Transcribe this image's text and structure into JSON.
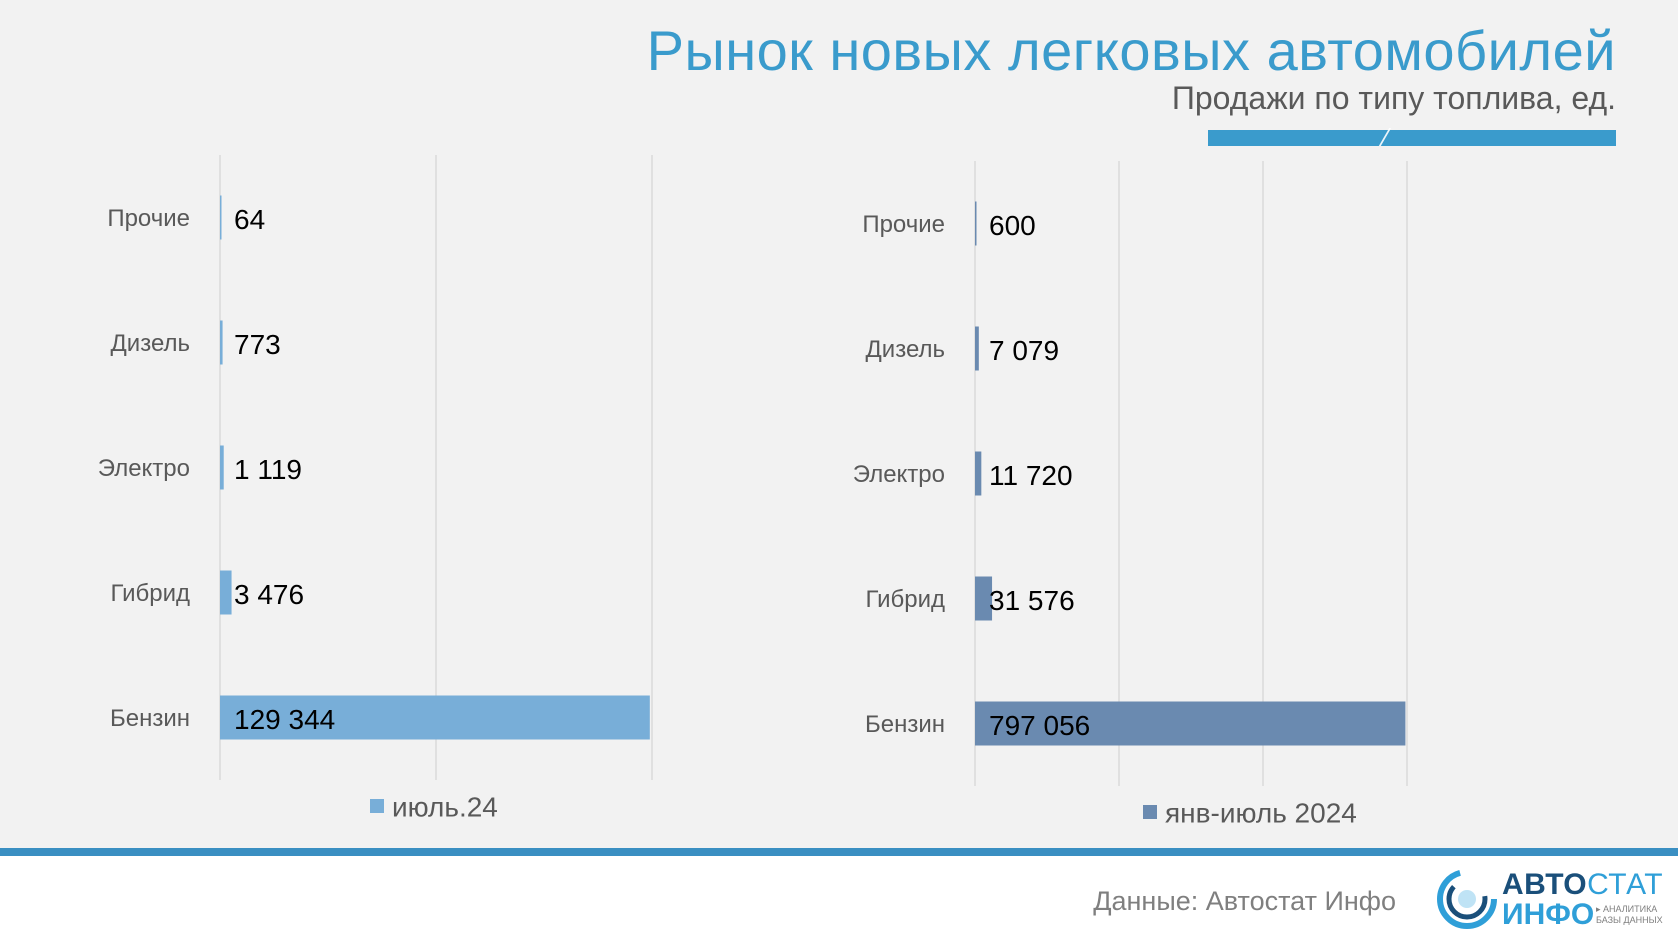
{
  "header": {
    "title": "Рынок новых легковых автомобилей",
    "subtitle": "Продажи по типу топлива, ед."
  },
  "colors": {
    "accent": "#3a9bcc",
    "bar_july": "#78aed8",
    "bar_ytd": "#6a8ab0"
  },
  "chart_data": [
    {
      "type": "bar",
      "orientation": "horizontal",
      "categories": [
        "Прочие",
        "Дизель",
        "Электро",
        "Гибрид",
        "Бензин"
      ],
      "values": [
        64,
        773,
        1119,
        3476,
        129344
      ],
      "value_labels": [
        "64",
        "773",
        "1 119",
        "3 476",
        "129 344"
      ],
      "series_name": "июль.24",
      "xlim": [
        0,
        130000
      ],
      "grid": true,
      "legend": "bottom"
    },
    {
      "type": "bar",
      "orientation": "horizontal",
      "categories": [
        "Прочие",
        "Дизель",
        "Электро",
        "Гибрид",
        "Бензин"
      ],
      "values": [
        600,
        7079,
        11720,
        31576,
        797056
      ],
      "value_labels": [
        "600",
        "7 079",
        "11 720",
        "31 576",
        "797 056"
      ],
      "series_name": "янв-июль 2024",
      "xlim": [
        0,
        800000
      ],
      "grid": true,
      "legend": "bottom"
    }
  ],
  "footer": {
    "source": "Данные: Автостат Инфо",
    "logo_line1_bold": "АВТО",
    "logo_line1_light": "СТАТ",
    "logo_line2": "ИНФО",
    "logo_tag": "▸ АНАЛИТИКА\nБАЗЫ ДАННЫХ"
  }
}
